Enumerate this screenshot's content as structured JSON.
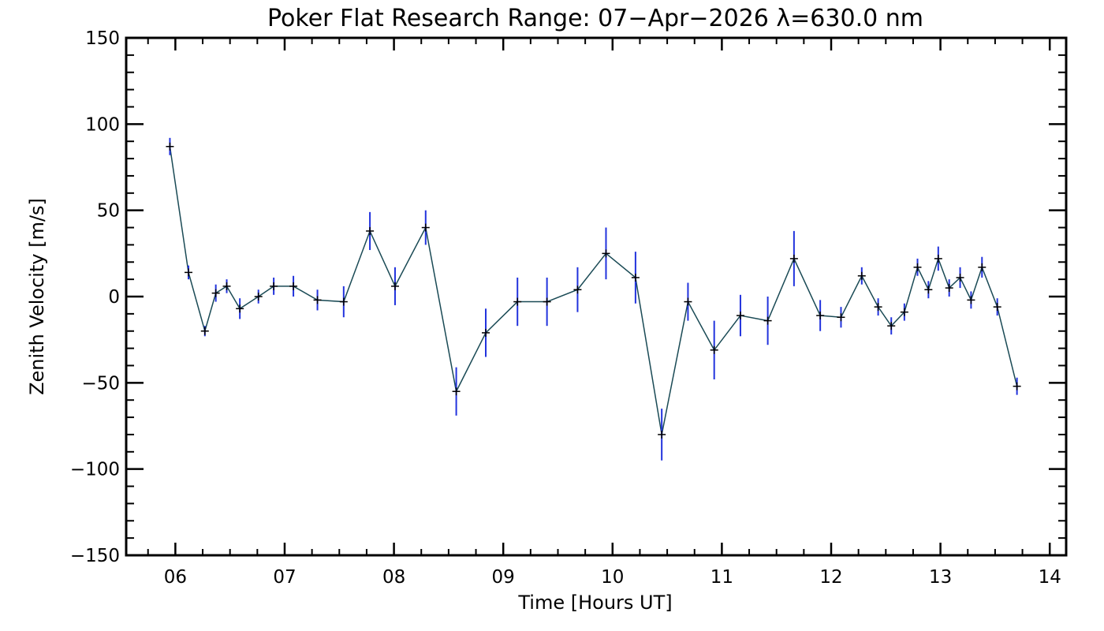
{
  "chart_data": {
    "type": "line",
    "title": "Poker Flat Research Range: 07−Apr−2026 λ=630.0 nm",
    "xlabel": "Time [Hours UT]",
    "ylabel": "Zenith Velocity [m/s]",
    "xlim": [
      5.55,
      14.15
    ],
    "ylim": [
      -150,
      150
    ],
    "xticks": [
      6,
      7,
      8,
      9,
      10,
      11,
      12,
      13,
      14
    ],
    "xtick_labels": [
      "06",
      "07",
      "08",
      "09",
      "10",
      "11",
      "12",
      "13",
      "14"
    ],
    "yticks": [
      -150,
      -100,
      -50,
      0,
      50,
      100,
      150
    ],
    "ytick_labels": [
      "−150",
      "−100",
      "−50",
      "0",
      "50",
      "100",
      "150"
    ],
    "line_color": "#1a4a55",
    "marker_color": "#000000",
    "errorbar_color": "#2233dd",
    "series": [
      {
        "name": "Zenith Velocity",
        "points": [
          {
            "x": 5.95,
            "y": 87,
            "err": 5
          },
          {
            "x": 6.12,
            "y": 14,
            "err": 4
          },
          {
            "x": 6.27,
            "y": -20,
            "err": 3
          },
          {
            "x": 6.37,
            "y": 2,
            "err": 5
          },
          {
            "x": 6.47,
            "y": 6,
            "err": 4
          },
          {
            "x": 6.59,
            "y": -7,
            "err": 6
          },
          {
            "x": 6.76,
            "y": 0,
            "err": 4
          },
          {
            "x": 6.9,
            "y": 6,
            "err": 5
          },
          {
            "x": 7.08,
            "y": 6,
            "err": 6
          },
          {
            "x": 7.3,
            "y": -2,
            "err": 6
          },
          {
            "x": 7.54,
            "y": -3,
            "err": 9
          },
          {
            "x": 7.78,
            "y": 38,
            "err": 11
          },
          {
            "x": 8.01,
            "y": 6,
            "err": 11
          },
          {
            "x": 8.29,
            "y": 40,
            "err": 10
          },
          {
            "x": 8.57,
            "y": -55,
            "err": 14
          },
          {
            "x": 8.84,
            "y": -21,
            "err": 14
          },
          {
            "x": 9.13,
            "y": -3,
            "err": 14
          },
          {
            "x": 9.4,
            "y": -3,
            "err": 14
          },
          {
            "x": 9.68,
            "y": 4,
            "err": 13
          },
          {
            "x": 9.94,
            "y": 25,
            "err": 15
          },
          {
            "x": 10.21,
            "y": 11,
            "err": 15
          },
          {
            "x": 10.45,
            "y": -80,
            "err": 15
          },
          {
            "x": 10.69,
            "y": -3,
            "err": 11
          },
          {
            "x": 10.93,
            "y": -31,
            "err": 17
          },
          {
            "x": 11.17,
            "y": -11,
            "err": 12
          },
          {
            "x": 11.42,
            "y": -14,
            "err": 14
          },
          {
            "x": 11.66,
            "y": 22,
            "err": 16
          },
          {
            "x": 11.9,
            "y": -11,
            "err": 9
          },
          {
            "x": 12.09,
            "y": -12,
            "err": 6
          },
          {
            "x": 12.28,
            "y": 12,
            "err": 5
          },
          {
            "x": 12.43,
            "y": -6,
            "err": 5
          },
          {
            "x": 12.55,
            "y": -17,
            "err": 5
          },
          {
            "x": 12.67,
            "y": -9,
            "err": 5
          },
          {
            "x": 12.79,
            "y": 17,
            "err": 5
          },
          {
            "x": 12.89,
            "y": 4,
            "err": 5
          },
          {
            "x": 12.98,
            "y": 22,
            "err": 7
          },
          {
            "x": 13.08,
            "y": 5,
            "err": 5
          },
          {
            "x": 13.18,
            "y": 11,
            "err": 6
          },
          {
            "x": 13.28,
            "y": -2,
            "err": 5
          },
          {
            "x": 13.38,
            "y": 17,
            "err": 6
          },
          {
            "x": 13.52,
            "y": -6,
            "err": 5
          },
          {
            "x": 13.7,
            "y": -52,
            "err": 5
          }
        ]
      }
    ]
  }
}
